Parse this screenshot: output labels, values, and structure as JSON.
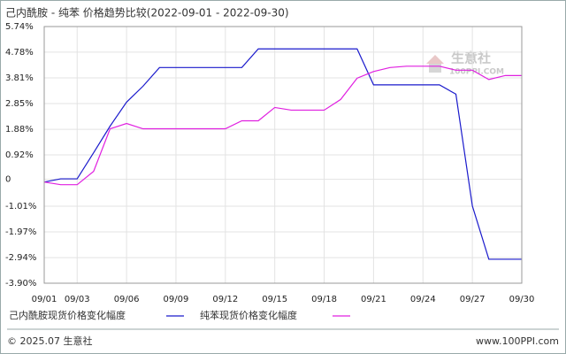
{
  "chart_data": {
    "type": "line",
    "title": "己内酰胺 - 纯苯 价格趋势比较(2022-09-01 - 2022-09-30)",
    "categories": [
      "09/01",
      null,
      "09/03",
      null,
      null,
      "09/06",
      null,
      null,
      "09/09",
      null,
      null,
      "09/12",
      null,
      null,
      "09/15",
      null,
      null,
      "09/18",
      null,
      null,
      "09/21",
      null,
      null,
      "09/24",
      null,
      null,
      "09/27",
      null,
      null,
      "09/30"
    ],
    "series": [
      {
        "name": "己内酰胺现货价格变化幅度",
        "color": "#1a1acc",
        "values": [
          -0.1,
          0.02,
          0.02,
          1.0,
          2.0,
          2.9,
          3.5,
          4.2,
          4.2,
          4.2,
          4.2,
          4.2,
          4.2,
          4.9,
          4.9,
          4.9,
          4.9,
          4.9,
          4.9,
          4.9,
          3.55,
          3.55,
          3.55,
          3.55,
          3.55,
          3.2,
          -1.0,
          -3.0,
          -3.0,
          -3.0
        ]
      },
      {
        "name": "纯苯现货价格变化幅度",
        "color": "#e020e0",
        "values": [
          -0.1,
          -0.2,
          -0.2,
          0.3,
          1.9,
          2.1,
          1.9,
          1.9,
          1.9,
          1.9,
          1.9,
          1.9,
          2.2,
          2.2,
          2.7,
          2.6,
          2.6,
          2.6,
          3.0,
          3.8,
          4.05,
          4.2,
          4.25,
          4.25,
          4.25,
          4.1,
          4.1,
          3.75,
          3.9,
          3.9
        ]
      }
    ],
    "ylim": [
      -3.9,
      5.74
    ],
    "yticks": [
      {
        "value": 5.74,
        "label": "5.74%"
      },
      {
        "value": 4.78,
        "label": "4.78%"
      },
      {
        "value": 3.81,
        "label": "3.81%"
      },
      {
        "value": 2.85,
        "label": "2.85%"
      },
      {
        "value": 1.88,
        "label": "1.88%"
      },
      {
        "value": 0.92,
        "label": "0.92%"
      },
      0,
      {
        "value": -1.01,
        "label": "-1.01%"
      },
      {
        "value": -1.97,
        "label": "-1.97%"
      },
      {
        "value": -2.94,
        "label": "-2.94%"
      },
      {
        "value": -3.9,
        "label": "-3.90%"
      }
    ],
    "grid": true,
    "watermark": {
      "name": "生意社",
      "site": "100PPI.COM"
    },
    "footer": {
      "copyright": "© 2025.07 生意社",
      "url": "www.100PPI.com"
    }
  }
}
